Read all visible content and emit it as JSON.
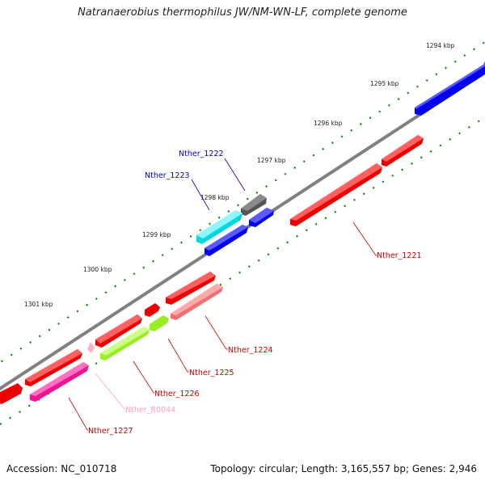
{
  "title": "Natranaerobius thermophilus JW/NM-WN-LF, complete genome",
  "footer": {
    "accession": "Accession: NC_010718",
    "topology": "Topology: circular; Length: 3,165,557 bp; Genes: 2,946"
  },
  "colors": {
    "backbone": "#808080",
    "tick": "#1a7a1a",
    "red": "#ff0000",
    "blue": "#0000ee",
    "cyan": "#00e5ee",
    "gray": "#666666",
    "lime": "#99ff33",
    "pink": "#ff7f7f",
    "magenta": "#ff1493",
    "lightpink": "#ffb6c1"
  },
  "kbp_labels": [
    "1294 kbp",
    "1295 kbp",
    "1296 kbp",
    "1297 kbp",
    "1298 kbp",
    "1299 kbp",
    "1300 kbp",
    "1301 kbp"
  ],
  "gene_labels": [
    "Nther_1222",
    "Nther_1223",
    "Nther_1221",
    "Nther_1224",
    "Nther_1225",
    "Nther_1226",
    "Nther_R0044",
    "Nther_1227"
  ]
}
